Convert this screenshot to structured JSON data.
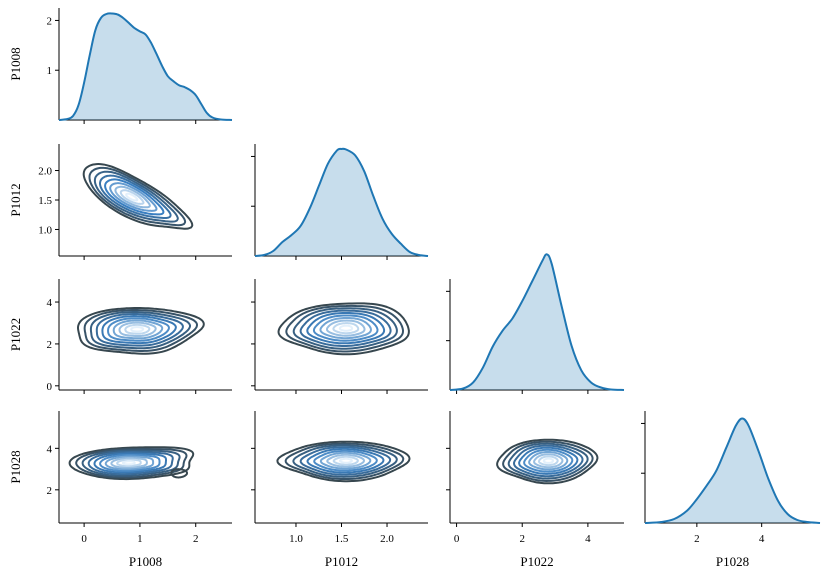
{
  "chart_data": {
    "type": "pairgrid",
    "corner": true,
    "variables": [
      "P1008",
      "P1012",
      "P1022",
      "P1028"
    ],
    "diag_kind": "kde",
    "offdiag_kind": "kde-contour",
    "colors": {
      "line": "#1f77b4",
      "fill": "#1f77b4",
      "contour_outer": "#37474f",
      "contour_inner": "#e3f0fb",
      "axis": "#000000"
    },
    "axes": {
      "P1008": {
        "range": [
          -0.45,
          2.65
        ],
        "ticks": [
          0,
          1,
          2
        ],
        "tick_labels": [
          "0",
          "1",
          "2"
        ]
      },
      "P1012": {
        "range": [
          0.55,
          2.45
        ],
        "ticks": [
          1.0,
          1.5,
          2.0
        ],
        "tick_labels": [
          "1.0",
          "1.5",
          "2.0"
        ]
      },
      "P1022": {
        "range": [
          -0.2,
          5.1
        ],
        "ticks": [
          0,
          2,
          4
        ],
        "tick_labels": [
          "0",
          "2",
          "4"
        ]
      },
      "P1028": {
        "range": [
          0.4,
          5.8
        ],
        "ticks": [
          2,
          4
        ],
        "tick_labels": [
          "2",
          "4"
        ]
      }
    },
    "density_axis": {
      "range": [
        0,
        2.25
      ],
      "ticks": [
        1,
        2
      ],
      "tick_labels": [
        "1",
        "2"
      ]
    },
    "diagonal": [
      {
        "variable": "P1008",
        "x": [
          -0.45,
          -0.3,
          -0.2,
          -0.1,
          0.0,
          0.1,
          0.2,
          0.3,
          0.4,
          0.5,
          0.6,
          0.7,
          0.8,
          0.9,
          1.0,
          1.1,
          1.2,
          1.3,
          1.4,
          1.5,
          1.6,
          1.7,
          1.8,
          1.9,
          2.0,
          2.1,
          2.2,
          2.3,
          2.45,
          2.65
        ],
        "density": [
          0.0,
          0.02,
          0.08,
          0.3,
          0.75,
          1.3,
          1.8,
          2.05,
          2.13,
          2.14,
          2.12,
          2.05,
          1.95,
          1.85,
          1.78,
          1.72,
          1.55,
          1.32,
          1.08,
          0.88,
          0.78,
          0.7,
          0.66,
          0.6,
          0.5,
          0.32,
          0.14,
          0.05,
          0.01,
          0.0
        ]
      },
      {
        "variable": "P1012",
        "x": [
          0.55,
          0.65,
          0.75,
          0.85,
          0.95,
          1.05,
          1.15,
          1.25,
          1.35,
          1.45,
          1.5,
          1.55,
          1.65,
          1.75,
          1.85,
          1.95,
          2.05,
          2.15,
          2.25,
          2.35,
          2.45
        ],
        "density": [
          0.0,
          0.02,
          0.1,
          0.28,
          0.42,
          0.6,
          0.95,
          1.4,
          1.85,
          2.12,
          2.15,
          2.14,
          2.02,
          1.7,
          1.2,
          0.75,
          0.45,
          0.25,
          0.08,
          0.02,
          0.0
        ]
      },
      {
        "variable": "P1022",
        "x": [
          -0.2,
          0.2,
          0.5,
          0.8,
          1.1,
          1.4,
          1.7,
          2.0,
          2.3,
          2.6,
          2.75,
          2.9,
          3.2,
          3.5,
          3.8,
          4.1,
          4.4,
          4.7,
          5.1
        ],
        "density": [
          0.0,
          0.03,
          0.15,
          0.45,
          0.88,
          1.2,
          1.45,
          1.8,
          2.2,
          2.6,
          2.75,
          2.55,
          1.7,
          0.9,
          0.4,
          0.15,
          0.05,
          0.01,
          0.0
        ]
      },
      {
        "variable": "P1028",
        "x": [
          0.4,
          0.9,
          1.3,
          1.7,
          2.0,
          2.3,
          2.6,
          2.9,
          3.2,
          3.4,
          3.6,
          3.9,
          4.2,
          4.5,
          4.8,
          5.1,
          5.4,
          5.8
        ],
        "density": [
          0.0,
          0.02,
          0.08,
          0.25,
          0.48,
          0.75,
          1.05,
          1.5,
          1.95,
          2.1,
          1.95,
          1.45,
          0.9,
          0.45,
          0.18,
          0.06,
          0.02,
          0.0
        ]
      }
    ],
    "offdiagonal": [
      {
        "x": "P1008",
        "y": "P1012",
        "components": [
          {
            "cx": 0.85,
            "cy": 1.55,
            "rx": 0.95,
            "ry": 0.33,
            "rotation": -0.45,
            "lobes": [
              {
                "a": 0.05,
                "s": 0.25
              },
              {
                "a": 2.2,
                "s": 0.1
              }
            ]
          }
        ],
        "levels": 9
      },
      {
        "x": "P1008",
        "y": "P1022",
        "components": [
          {
            "cx": 0.95,
            "cy": 2.7,
            "rx": 1.05,
            "ry": 1.05,
            "rotation": 0.0,
            "lobes": [
              {
                "a": 0.3,
                "s": 0.15
              },
              {
                "a": 3.9,
                "s": 0.18
              },
              {
                "a": 5.0,
                "s": 0.1
              }
            ]
          }
        ],
        "levels": 10
      },
      {
        "x": "P1008",
        "y": "P1028",
        "components": [
          {
            "cx": 0.8,
            "cy": 3.3,
            "rx": 1.05,
            "ry": 0.75,
            "rotation": 0.15,
            "lobes": [
              {
                "a": 0.5,
                "s": 0.22
              },
              {
                "a": 5.6,
                "s": 0.18
              }
            ]
          },
          {
            "cx": 1.7,
            "cy": 2.8,
            "rx": 0.14,
            "ry": 0.2,
            "rotation": 0.0,
            "lobes": [],
            "single": true
          }
        ],
        "levels": 10
      },
      {
        "x": "P1012",
        "y": "P1022",
        "components": [
          {
            "cx": 1.55,
            "cy": 2.75,
            "rx": 0.65,
            "ry": 1.2,
            "rotation": 0.0,
            "lobes": [
              {
                "a": 3.4,
                "s": 0.18
              },
              {
                "a": 5.9,
                "s": 0.12
              },
              {
                "a": 1.0,
                "s": 0.08
              }
            ]
          }
        ],
        "levels": 10
      },
      {
        "x": "P1012",
        "y": "P1028",
        "components": [
          {
            "cx": 1.55,
            "cy": 3.4,
            "rx": 0.62,
            "ry": 0.95,
            "rotation": 0.0,
            "lobes": [
              {
                "a": 3.2,
                "s": 0.22
              },
              {
                "a": 0.1,
                "s": 0.12
              }
            ]
          }
        ],
        "levels": 10
      },
      {
        "x": "P1022",
        "y": "P1028",
        "components": [
          {
            "cx": 2.8,
            "cy": 3.4,
            "rx": 1.35,
            "ry": 1.05,
            "rotation": 0.0,
            "lobes": [
              {
                "a": 3.4,
                "s": 0.2
              },
              {
                "a": 0.15,
                "s": 0.1
              }
            ]
          }
        ],
        "levels": 10
      }
    ]
  }
}
